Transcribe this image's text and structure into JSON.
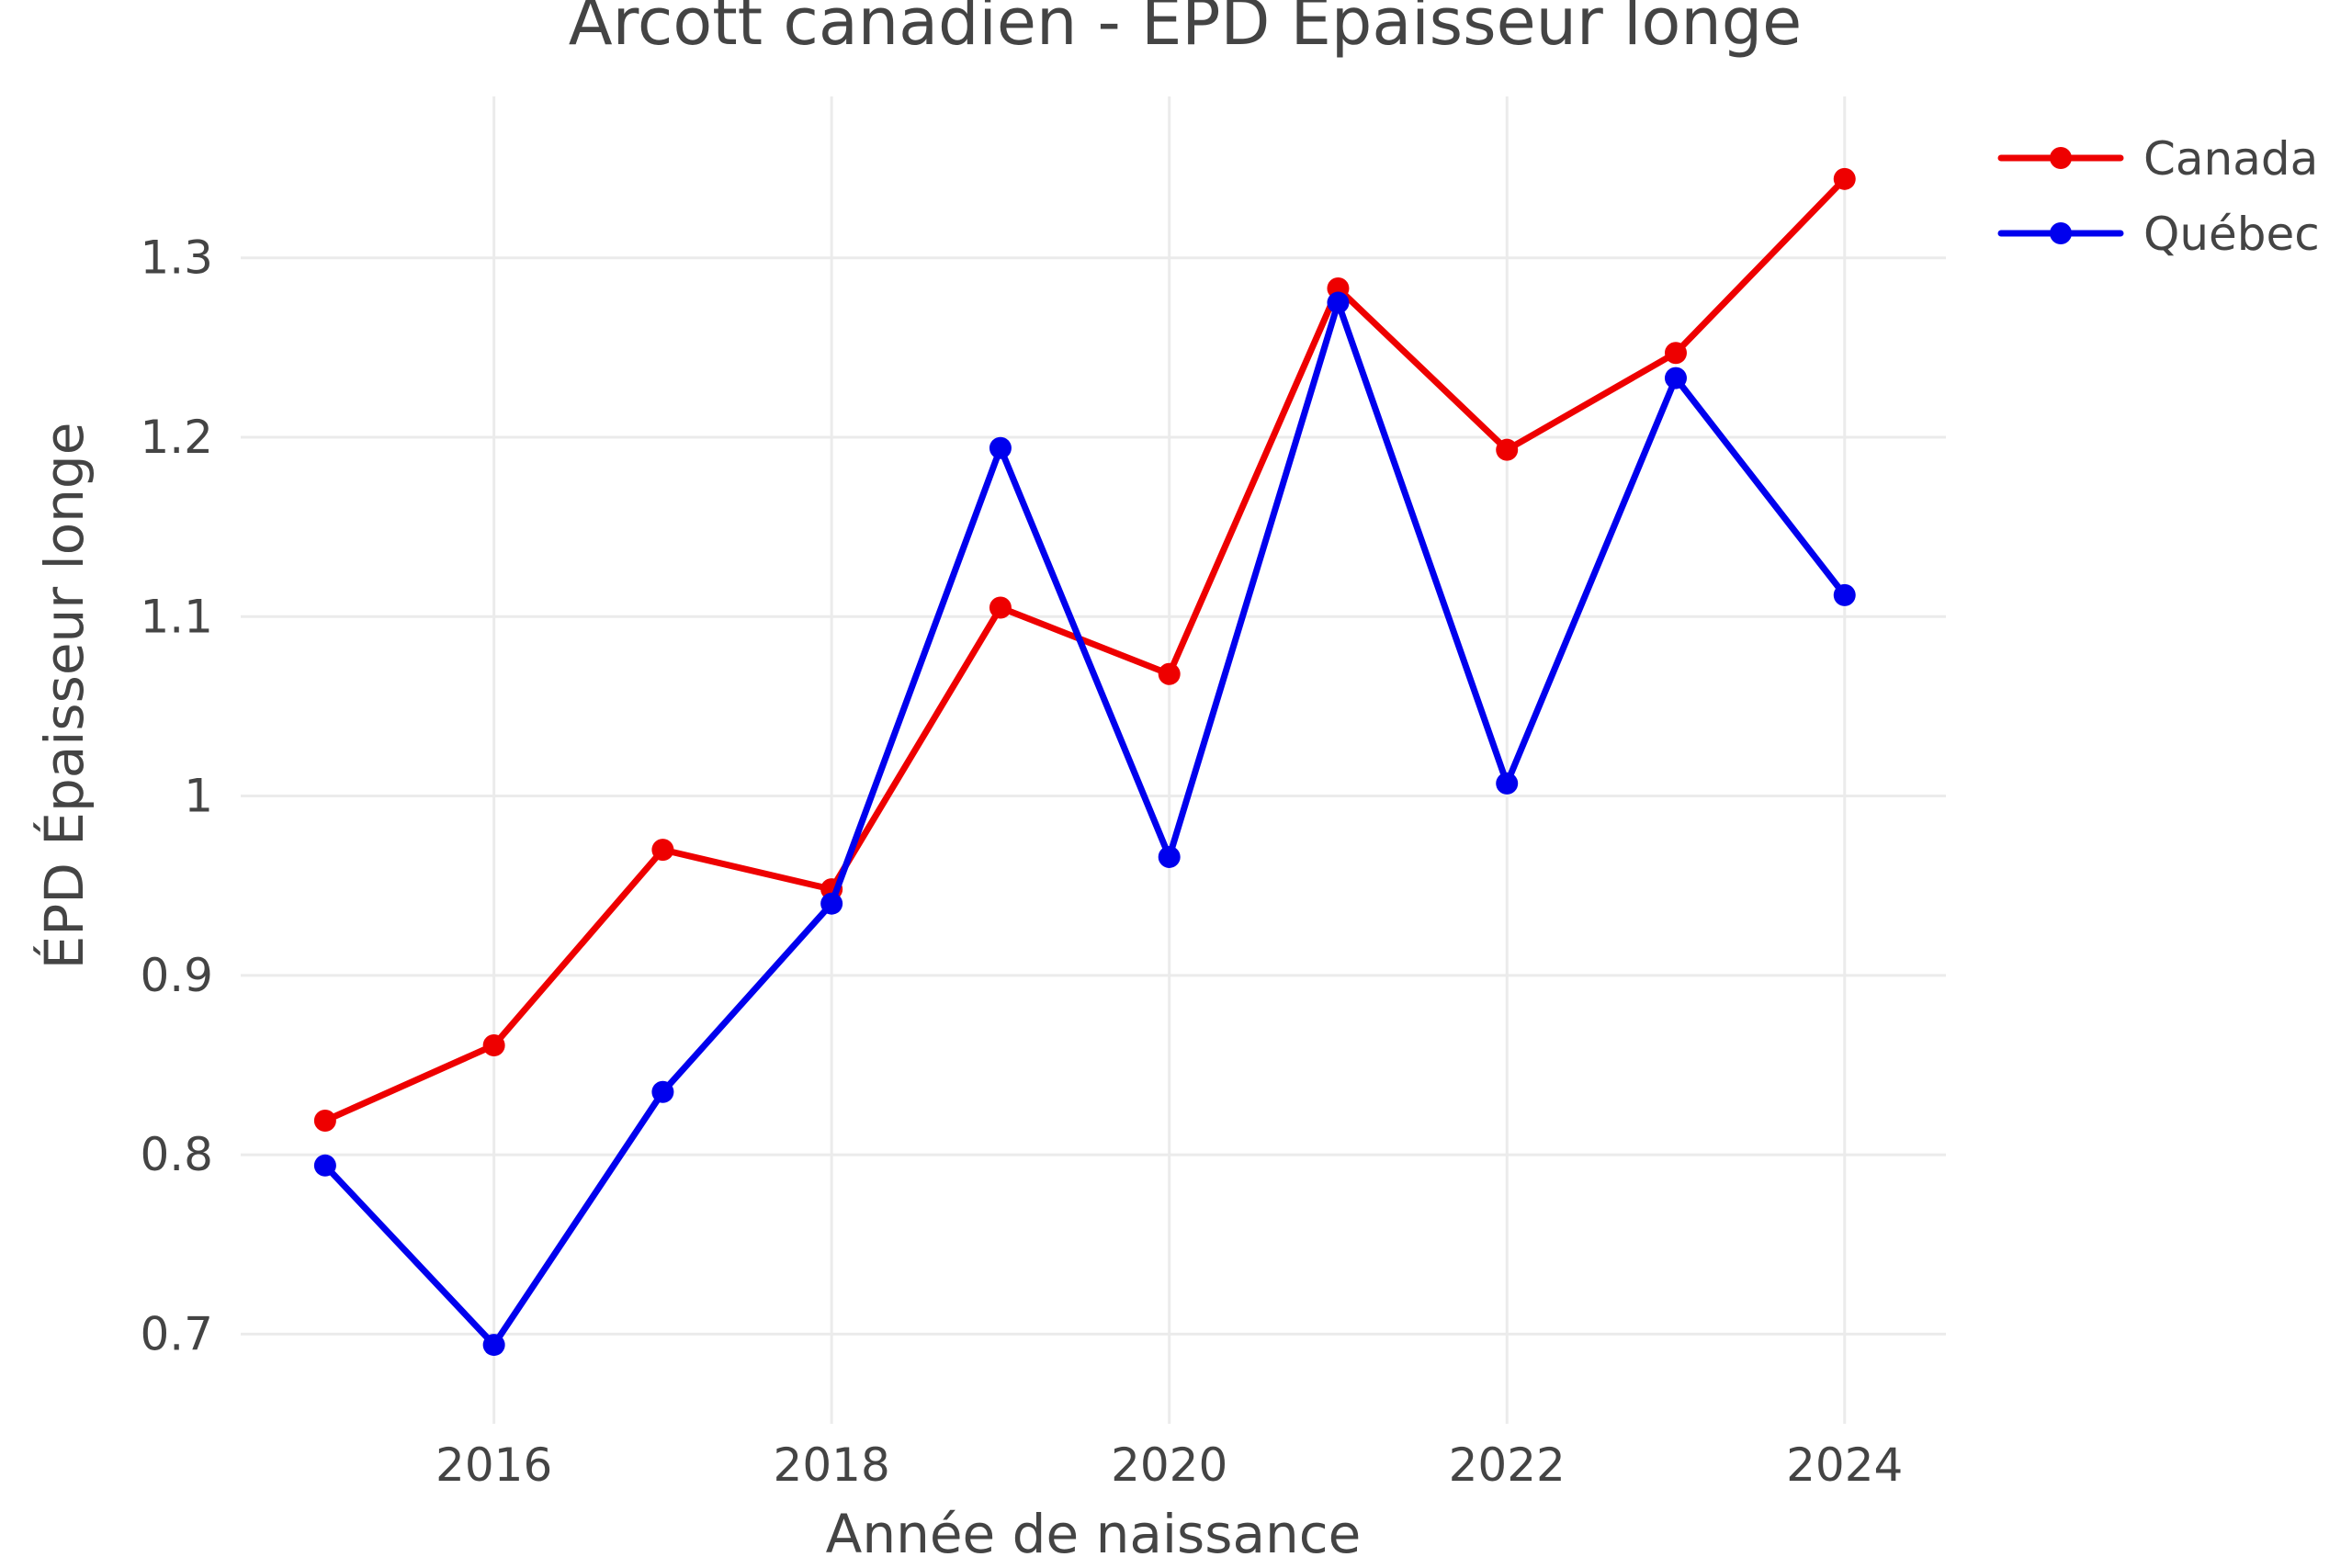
{
  "chart_data": {
    "type": "line",
    "title": "Arcott canadien - ÉPD Épaisseur longe",
    "xlabel": "Année de naissance",
    "ylabel": "ÉPD Épaisseur longe",
    "x": [
      2015,
      2016,
      2017,
      2018,
      2019,
      2020,
      2021,
      2022,
      2023,
      2024
    ],
    "xlim": [
      2014.5,
      2024.6
    ],
    "ylim": [
      0.65,
      1.39
    ],
    "x_ticks": [
      "2016",
      "2018",
      "2020",
      "2022",
      "2024"
    ],
    "y_ticks": [
      "0.7",
      "0.8",
      "0.9",
      "1",
      "1.1",
      "1.2",
      "1.3"
    ],
    "grid": true,
    "legend_position": "top-right",
    "series": [
      {
        "name": "Canada",
        "color": "#ee0000",
        "values": [
          0.819,
          0.861,
          0.97,
          0.948,
          1.105,
          1.068,
          1.283,
          1.193,
          1.247,
          1.344
        ]
      },
      {
        "name": "Québec",
        "color": "#0000ee",
        "values": [
          0.794,
          0.694,
          0.835,
          0.94,
          1.194,
          0.966,
          1.275,
          1.007,
          1.233,
          1.112
        ]
      }
    ]
  }
}
